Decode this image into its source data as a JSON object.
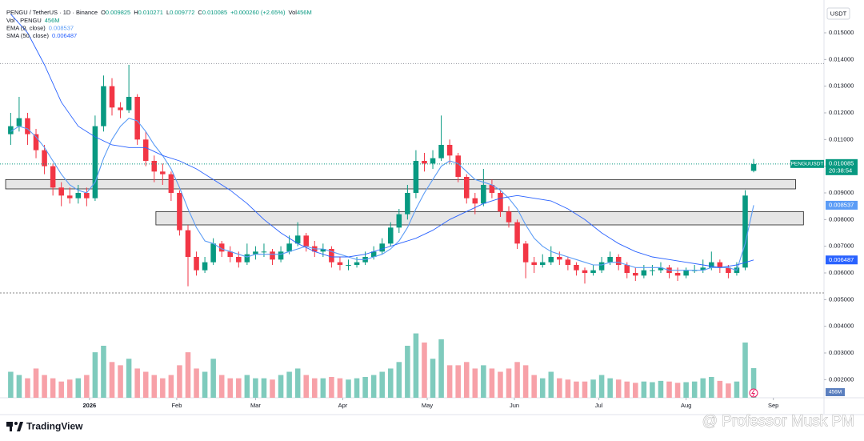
{
  "chart_data": {
    "type": "candlestick",
    "legend": {
      "symbol": "PENGU / TetherUS · 1D · Binance",
      "ohlc_labels": [
        "O",
        "H",
        "L",
        "C"
      ],
      "change": "+0.000260 (+2.65%)",
      "vol_label": "Vol",
      "vol_value": "456M",
      "vol_series": "Vol · PENGU"
    },
    "ticker": "PENGUUSDT",
    "countdown": "20:38:54",
    "currency": "USDT",
    "branding": "TradingView",
    "watermark": "@ Professor Musk PM",
    "up_color": "#089981",
    "down_color": "#f23645",
    "volume_up_color": "#7fcbbd",
    "volume_down_color": "#f7a1a8",
    "xlim": [
      -31.8,
      261
    ],
    "xticks": [
      {
        "value": 0,
        "label": "2026"
      },
      {
        "value": 31,
        "label": "Feb"
      },
      {
        "value": 59,
        "label": "Mar"
      },
      {
        "value": 90,
        "label": "Apr"
      },
      {
        "value": 120,
        "label": "May"
      },
      {
        "value": 151,
        "label": "Jun"
      },
      {
        "value": 181,
        "label": "Jul"
      },
      {
        "value": 212,
        "label": "Aug"
      },
      {
        "value": 243,
        "label": "Sep"
      }
    ],
    "ylim": [
      0.00132,
      0.01623
    ],
    "yticks": [
      {
        "value": 0.015,
        "label": "0.015000"
      },
      {
        "value": 0.014,
        "label": "0.014000"
      },
      {
        "value": 0.013,
        "label": "0.013000"
      },
      {
        "value": 0.012,
        "label": "0.012000"
      },
      {
        "value": 0.011,
        "label": "0.011000"
      },
      {
        "value": 0.01,
        "label": "0.010000"
      },
      {
        "value": 0.009,
        "label": "0.009000"
      },
      {
        "value": 0.008,
        "label": "0.008000"
      },
      {
        "value": 0.007,
        "label": "0.007000"
      },
      {
        "value": 0.006,
        "label": "0.006000"
      },
      {
        "value": 0.005,
        "label": "0.005000"
      },
      {
        "value": 0.004,
        "label": "0.004000"
      },
      {
        "value": 0.003,
        "label": "0.003000"
      },
      {
        "value": 0.002,
        "label": "0.002000"
      }
    ],
    "grid": false,
    "volume_lim": [
      0,
      1600
    ],
    "levels": [
      0.01385
    ],
    "zones": [
      {
        "from": 0.00915,
        "to": 0.0095,
        "start": -29.8,
        "end": 250.9
      },
      {
        "from": 0.0078,
        "to": 0.0083,
        "start": 23.6,
        "end": 253.7
      }
    ],
    "candles": {
      "x": [
        -28,
        -25,
        -22,
        -19,
        -16,
        -13,
        -10,
        -7,
        -4,
        -1,
        2,
        5,
        8,
        11,
        14,
        17,
        20,
        23,
        26,
        29,
        32,
        35,
        38,
        41,
        44,
        47,
        50,
        53,
        56,
        59,
        62,
        65,
        68,
        71,
        74,
        77,
        80,
        83,
        86,
        89,
        92,
        95,
        98,
        101,
        104,
        107,
        110,
        113,
        116,
        119,
        122,
        125,
        128,
        131,
        134,
        137,
        140,
        143,
        146,
        149,
        152,
        155,
        158,
        161,
        164,
        167,
        170,
        173,
        176,
        179,
        182,
        185,
        188,
        191,
        194,
        197,
        200,
        203,
        206,
        209,
        212,
        215,
        218,
        221,
        224,
        227,
        230,
        233,
        236
      ],
      "ohlc": [
        [
          0.0112,
          0.012,
          0.0108,
          0.0115
        ],
        [
          0.0115,
          0.0126,
          0.0113,
          0.0118
        ],
        [
          0.0118,
          0.012,
          0.0108,
          0.0112
        ],
        [
          0.0112,
          0.0114,
          0.0103,
          0.0106
        ],
        [
          0.0106,
          0.0108,
          0.0097,
          0.01
        ],
        [
          0.01,
          0.0101,
          0.0089,
          0.0092
        ],
        [
          0.0092,
          0.0094,
          0.0085,
          0.0089
        ],
        [
          0.0089,
          0.0092,
          0.0086,
          0.0088
        ],
        [
          0.0088,
          0.0093,
          0.0086,
          0.009
        ],
        [
          0.009,
          0.0092,
          0.0085,
          0.0088
        ],
        [
          0.0088,
          0.0119,
          0.0087,
          0.0115
        ],
        [
          0.0115,
          0.0134,
          0.0113,
          0.013
        ],
        [
          0.013,
          0.0133,
          0.0119,
          0.0122
        ],
        [
          0.0122,
          0.0124,
          0.0118,
          0.0121
        ],
        [
          0.0121,
          0.0138,
          0.012,
          0.0126
        ],
        [
          0.0126,
          0.0127,
          0.0108,
          0.011
        ],
        [
          0.011,
          0.0113,
          0.01,
          0.0102
        ],
        [
          0.0102,
          0.0104,
          0.0094,
          0.0098
        ],
        [
          0.0098,
          0.0101,
          0.0093,
          0.0097
        ],
        [
          0.0097,
          0.0098,
          0.0087,
          0.009
        ],
        [
          0.009,
          0.0091,
          0.0074,
          0.0076
        ],
        [
          0.0076,
          0.0078,
          0.0055,
          0.0066
        ],
        [
          0.0066,
          0.0068,
          0.0059,
          0.0061
        ],
        [
          0.0061,
          0.0066,
          0.006,
          0.0064
        ],
        [
          0.0064,
          0.0073,
          0.0063,
          0.0071
        ],
        [
          0.0071,
          0.0072,
          0.0066,
          0.0068
        ],
        [
          0.0068,
          0.007,
          0.0064,
          0.0066
        ],
        [
          0.0066,
          0.0068,
          0.0062,
          0.0064
        ],
        [
          0.0064,
          0.0071,
          0.0063,
          0.0067
        ],
        [
          0.0067,
          0.007,
          0.0065,
          0.0068
        ],
        [
          0.0068,
          0.0071,
          0.0066,
          0.0068
        ],
        [
          0.0068,
          0.0069,
          0.0063,
          0.0065
        ],
        [
          0.0065,
          0.007,
          0.0064,
          0.0068
        ],
        [
          0.0068,
          0.0074,
          0.0067,
          0.0071
        ],
        [
          0.0071,
          0.0079,
          0.007,
          0.0074
        ],
        [
          0.0074,
          0.0075,
          0.0068,
          0.007
        ],
        [
          0.007,
          0.0072,
          0.0066,
          0.0068
        ],
        [
          0.0068,
          0.0071,
          0.0066,
          0.0069
        ],
        [
          0.0069,
          0.007,
          0.0062,
          0.0064
        ],
        [
          0.0064,
          0.0066,
          0.0061,
          0.0063
        ],
        [
          0.0063,
          0.0065,
          0.0061,
          0.0063
        ],
        [
          0.0063,
          0.0066,
          0.0062,
          0.0064
        ],
        [
          0.0064,
          0.0068,
          0.0063,
          0.0066
        ],
        [
          0.0066,
          0.007,
          0.0065,
          0.0068
        ],
        [
          0.0068,
          0.0073,
          0.0067,
          0.0071
        ],
        [
          0.0071,
          0.0079,
          0.007,
          0.0077
        ],
        [
          0.0077,
          0.0084,
          0.0075,
          0.0082
        ],
        [
          0.0082,
          0.0093,
          0.008,
          0.009
        ],
        [
          0.009,
          0.0106,
          0.0088,
          0.0102
        ],
        [
          0.0102,
          0.0105,
          0.0098,
          0.0101
        ],
        [
          0.0101,
          0.0106,
          0.0099,
          0.0103
        ],
        [
          0.0103,
          0.0119,
          0.0102,
          0.0108
        ],
        [
          0.0108,
          0.011,
          0.0101,
          0.0104
        ],
        [
          0.0104,
          0.0105,
          0.0094,
          0.0096
        ],
        [
          0.0096,
          0.0097,
          0.0086,
          0.0088
        ],
        [
          0.0088,
          0.009,
          0.0082,
          0.0086
        ],
        [
          0.0086,
          0.0099,
          0.0085,
          0.0093
        ],
        [
          0.0093,
          0.0095,
          0.0088,
          0.009
        ],
        [
          0.009,
          0.0091,
          0.0081,
          0.0083
        ],
        [
          0.0083,
          0.0085,
          0.0077,
          0.0079
        ],
        [
          0.0079,
          0.008,
          0.0069,
          0.0071
        ],
        [
          0.0071,
          0.0072,
          0.0058,
          0.0064
        ],
        [
          0.0064,
          0.0066,
          0.006,
          0.0063
        ],
        [
          0.0063,
          0.0067,
          0.0062,
          0.0064
        ],
        [
          0.0064,
          0.007,
          0.0063,
          0.0066
        ],
        [
          0.0066,
          0.0068,
          0.0063,
          0.0065
        ],
        [
          0.0065,
          0.0066,
          0.0061,
          0.0063
        ],
        [
          0.0063,
          0.0064,
          0.0059,
          0.0061
        ],
        [
          0.0061,
          0.0062,
          0.0056,
          0.006
        ],
        [
          0.006,
          0.0063,
          0.0059,
          0.0061
        ],
        [
          0.0061,
          0.0066,
          0.006,
          0.0064
        ],
        [
          0.0064,
          0.0068,
          0.0063,
          0.0066
        ],
        [
          0.0066,
          0.0067,
          0.0061,
          0.0063
        ],
        [
          0.0063,
          0.0064,
          0.0058,
          0.006
        ],
        [
          0.006,
          0.0062,
          0.0057,
          0.0059
        ],
        [
          0.0059,
          0.0063,
          0.0058,
          0.0061
        ],
        [
          0.0061,
          0.0063,
          0.0059,
          0.0061
        ],
        [
          0.0061,
          0.0064,
          0.006,
          0.0062
        ],
        [
          0.0062,
          0.0063,
          0.0058,
          0.006
        ],
        [
          0.006,
          0.0062,
          0.0057,
          0.0059
        ],
        [
          0.0059,
          0.0062,
          0.0058,
          0.0061
        ],
        [
          0.0061,
          0.0063,
          0.006,
          0.0061
        ],
        [
          0.0061,
          0.0065,
          0.006,
          0.0062
        ],
        [
          0.0062,
          0.0068,
          0.0061,
          0.0064
        ],
        [
          0.0064,
          0.0065,
          0.006,
          0.0062
        ],
        [
          0.0062,
          0.0063,
          0.0058,
          0.006
        ],
        [
          0.006,
          0.0064,
          0.0059,
          0.0062
        ],
        [
          0.0062,
          0.0091,
          0.0061,
          0.0089
        ],
        [
          0.009825,
          0.010271,
          0.009772,
          0.010085
        ]
      ],
      "volume": [
        400,
        350,
        300,
        450,
        350,
        300,
        250,
        280,
        300,
        350,
        700,
        800,
        550,
        500,
        600,
        450,
        400,
        350,
        300,
        350,
        500,
        700,
        450,
        400,
        600,
        350,
        300,
        300,
        350,
        300,
        300,
        280,
        350,
        400,
        450,
        350,
        300,
        300,
        320,
        300,
        280,
        300,
        320,
        350,
        400,
        450,
        550,
        800,
        990,
        850,
        600,
        900,
        500,
        500,
        550,
        450,
        500,
        450,
        400,
        450,
        550,
        500,
        350,
        300,
        400,
        300,
        280,
        250,
        250,
        280,
        350,
        300,
        280,
        250,
        230,
        250,
        240,
        260,
        250,
        230,
        240,
        250,
        300,
        320,
        260,
        220,
        250,
        850,
        456
      ]
    },
    "series": [
      {
        "name": "EMA (9, close)",
        "color": "#5b9cf6",
        "x": [
          -28,
          -25,
          -22,
          -19,
          -16,
          -13,
          -10,
          -7,
          -4,
          -1,
          2,
          5,
          8,
          11,
          14,
          17,
          20,
          23,
          26,
          29,
          32,
          35,
          38,
          41,
          44,
          47,
          50,
          53,
          56,
          59,
          62,
          65,
          68,
          71,
          74,
          77,
          80,
          83,
          86,
          89,
          92,
          95,
          98,
          101,
          104,
          107,
          110,
          113,
          116,
          119,
          122,
          125,
          128,
          131,
          134,
          137,
          140,
          143,
          146,
          149,
          152,
          155,
          158,
          161,
          164,
          167,
          170,
          173,
          176,
          179,
          182,
          185,
          188,
          191,
          194,
          197,
          200,
          203,
          206,
          209,
          212,
          215,
          218,
          221,
          224,
          227,
          230,
          233,
          236
        ],
        "values": [
          0.0113,
          0.0115,
          0.0114,
          0.0111,
          0.0107,
          0.0102,
          0.0097,
          0.0093,
          0.0091,
          0.009,
          0.0094,
          0.0103,
          0.011,
          0.0115,
          0.0118,
          0.0117,
          0.0113,
          0.0108,
          0.0104,
          0.0099,
          0.0092,
          0.0084,
          0.0077,
          0.0072,
          0.0071,
          0.0069,
          0.0068,
          0.0067,
          0.0066,
          0.0067,
          0.0067,
          0.0067,
          0.0067,
          0.0068,
          0.0069,
          0.007,
          0.0069,
          0.0069,
          0.0068,
          0.0067,
          0.0066,
          0.0065,
          0.0065,
          0.0066,
          0.0067,
          0.0069,
          0.0072,
          0.0077,
          0.0084,
          0.009,
          0.0095,
          0.01,
          0.0102,
          0.0101,
          0.0098,
          0.0095,
          0.0094,
          0.0093,
          0.0091,
          0.0088,
          0.0084,
          0.0078,
          0.0073,
          0.007,
          0.0068,
          0.0067,
          0.0066,
          0.0065,
          0.0064,
          0.0063,
          0.0063,
          0.0064,
          0.0064,
          0.0063,
          0.0062,
          0.0062,
          0.0062,
          0.0062,
          0.0061,
          0.0061,
          0.0061,
          0.0061,
          0.0061,
          0.0062,
          0.0062,
          0.0062,
          0.0061,
          0.0071,
          0.008537
        ]
      },
      {
        "name": "SMA (50, close)",
        "color": "#2962ff",
        "x": [
          -28,
          -22,
          -16,
          -10,
          -4,
          2,
          8,
          14,
          20,
          26,
          32,
          38,
          44,
          50,
          56,
          62,
          68,
          74,
          80,
          86,
          92,
          98,
          104,
          110,
          116,
          122,
          128,
          134,
          140,
          146,
          152,
          158,
          164,
          170,
          176,
          182,
          188,
          194,
          200,
          206,
          212,
          218,
          224,
          230,
          236
        ],
        "values": [
          0.0157,
          0.015,
          0.0138,
          0.0124,
          0.0115,
          0.0111,
          0.0108,
          0.0107,
          0.0107,
          0.0104,
          0.0102,
          0.0099,
          0.0095,
          0.0091,
          0.0086,
          0.008,
          0.0075,
          0.0071,
          0.0068,
          0.0066,
          0.0066,
          0.0067,
          0.0069,
          0.0071,
          0.0073,
          0.0076,
          0.008,
          0.0083,
          0.0086,
          0.0088,
          0.0089,
          0.0088,
          0.0087,
          0.0084,
          0.008,
          0.0075,
          0.0071,
          0.0068,
          0.0066,
          0.0065,
          0.0064,
          0.0063,
          0.0062,
          0.0063,
          0.006487
        ]
      }
    ]
  }
}
